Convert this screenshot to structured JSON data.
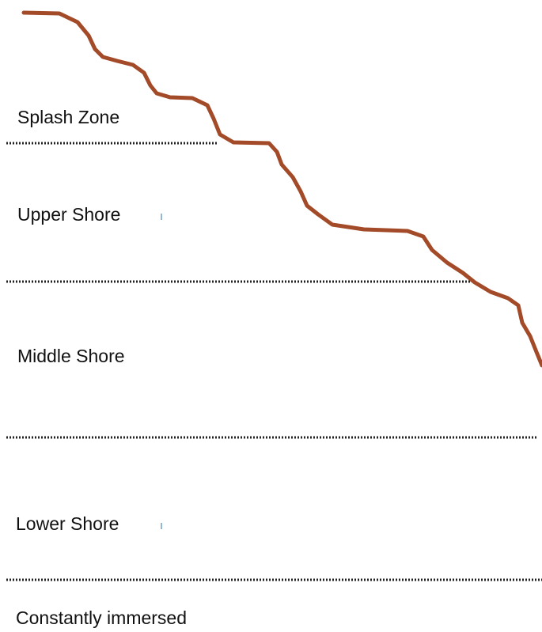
{
  "zones": [
    {
      "label": "Splash Zone"
    },
    {
      "label": "Upper Shore"
    },
    {
      "label": "Middle Shore"
    },
    {
      "label": "Lower Shore"
    },
    {
      "label": "Constantly immersed"
    }
  ]
}
